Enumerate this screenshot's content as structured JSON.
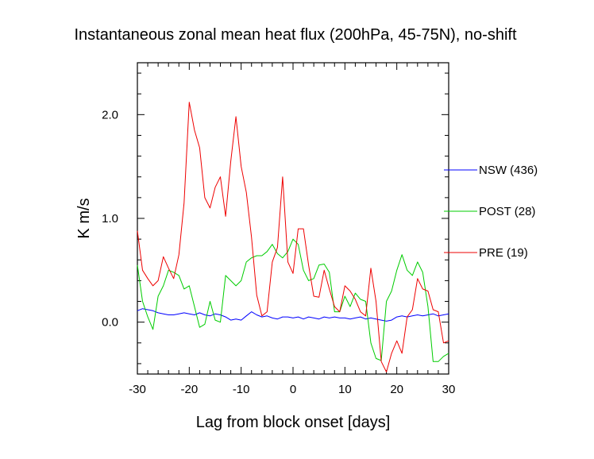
{
  "chart_data": {
    "type": "line",
    "title": "Instantaneous zonal mean heat flux (200hPa, 45-75N), no-shift",
    "xlabel": "Lag from block onset [days]",
    "ylabel": "K m/s",
    "xlim": [
      -30,
      30
    ],
    "ylim": [
      -0.5,
      2.5
    ],
    "xticks": [
      -30,
      -20,
      -10,
      0,
      10,
      20,
      30
    ],
    "xtick_labels": [
      "-30",
      "-20",
      "-10",
      "0",
      "10",
      "20",
      "30"
    ],
    "yticks": [
      0,
      1,
      2
    ],
    "ytick_labels": [
      "0.0",
      "1.0",
      "2.0"
    ],
    "grid": false,
    "legend_position": "right",
    "series": [
      {
        "name": "NSW (436)",
        "color": "#0000ff",
        "x": [
          -30,
          -29,
          -28,
          -27,
          -26,
          -25,
          -24,
          -23,
          -22,
          -21,
          -20,
          -19,
          -18,
          -17,
          -16,
          -15,
          -14,
          -13,
          -12,
          -11,
          -10,
          -9,
          -8,
          -7,
          -6,
          -5,
          -4,
          -3,
          -2,
          -1,
          0,
          1,
          2,
          3,
          4,
          5,
          6,
          7,
          8,
          9,
          10,
          11,
          12,
          13,
          14,
          15,
          16,
          17,
          18,
          19,
          20,
          21,
          22,
          23,
          24,
          25,
          26,
          27,
          28,
          29,
          30
        ],
        "y": [
          0.11,
          0.13,
          0.12,
          0.11,
          0.09,
          0.08,
          0.07,
          0.07,
          0.08,
          0.09,
          0.08,
          0.07,
          0.09,
          0.07,
          0.06,
          0.08,
          0.07,
          0.05,
          0.02,
          0.03,
          0.02,
          0.06,
          0.1,
          0.07,
          0.05,
          0.06,
          0.04,
          0.03,
          0.05,
          0.05,
          0.04,
          0.05,
          0.03,
          0.05,
          0.04,
          0.03,
          0.05,
          0.04,
          0.05,
          0.04,
          0.04,
          0.03,
          0.04,
          0.05,
          0.03,
          0.04,
          0.03,
          0.02,
          0.01,
          0.02,
          0.05,
          0.06,
          0.05,
          0.06,
          0.07,
          0.06,
          0.07,
          0.08,
          0.06,
          0.07,
          0.08
        ]
      },
      {
        "name": "POST (28)",
        "color": "#00cc00",
        "x": [
          -30,
          -29,
          -28,
          -27,
          -26,
          -25,
          -24,
          -23,
          -22,
          -21,
          -20,
          -19,
          -18,
          -17,
          -16,
          -15,
          -14,
          -13,
          -12,
          -11,
          -10,
          -9,
          -8,
          -7,
          -6,
          -5,
          -4,
          -3,
          -2,
          -1,
          0,
          1,
          2,
          3,
          4,
          5,
          6,
          7,
          8,
          9,
          10,
          11,
          12,
          13,
          14,
          15,
          16,
          17,
          18,
          19,
          20,
          21,
          22,
          23,
          24,
          25,
          26,
          27,
          28,
          29,
          30
        ],
        "y": [
          0.55,
          0.2,
          0.05,
          -0.07,
          0.25,
          0.35,
          0.5,
          0.48,
          0.45,
          0.32,
          0.35,
          0.15,
          -0.05,
          -0.02,
          0.2,
          0.02,
          0.0,
          0.45,
          0.4,
          0.35,
          0.4,
          0.58,
          0.62,
          0.64,
          0.64,
          0.68,
          0.75,
          0.66,
          0.62,
          0.68,
          0.8,
          0.75,
          0.5,
          0.4,
          0.42,
          0.55,
          0.56,
          0.48,
          0.1,
          0.1,
          0.25,
          0.15,
          0.28,
          0.22,
          0.2,
          -0.2,
          -0.35,
          -0.37,
          0.2,
          0.3,
          0.5,
          0.65,
          0.5,
          0.45,
          0.58,
          0.48,
          0.15,
          -0.38,
          -0.38,
          -0.33,
          -0.3
        ]
      },
      {
        "name": "PRE (19)",
        "color": "#ee0000",
        "x": [
          -30,
          -29,
          -28,
          -27,
          -26,
          -25,
          -24,
          -23,
          -22,
          -21,
          -20,
          -19,
          -18,
          -17,
          -16,
          -15,
          -14,
          -13,
          -12,
          -11,
          -10,
          -9,
          -8,
          -7,
          -6,
          -5,
          -4,
          -3,
          -2,
          -1,
          0,
          1,
          2,
          3,
          4,
          5,
          6,
          7,
          8,
          9,
          10,
          11,
          12,
          13,
          14,
          15,
          16,
          17,
          18,
          19,
          20,
          21,
          22,
          23,
          24,
          25,
          26,
          27,
          28,
          29,
          30
        ],
        "y": [
          0.88,
          0.5,
          0.42,
          0.35,
          0.4,
          0.63,
          0.52,
          0.42,
          0.65,
          1.15,
          2.12,
          1.85,
          1.68,
          1.2,
          1.1,
          1.3,
          1.4,
          1.02,
          1.55,
          1.98,
          1.5,
          1.25,
          0.82,
          0.26,
          0.06,
          0.1,
          0.58,
          0.72,
          1.4,
          0.58,
          0.47,
          0.9,
          0.9,
          0.55,
          0.25,
          0.24,
          0.5,
          0.32,
          0.15,
          0.1,
          0.35,
          0.3,
          0.22,
          0.1,
          0.06,
          0.52,
          0.2,
          -0.38,
          -0.48,
          -0.3,
          -0.18,
          -0.3,
          0.05,
          0.12,
          0.42,
          0.32,
          0.3,
          0.12,
          0.1,
          -0.2,
          -0.18
        ]
      }
    ]
  }
}
